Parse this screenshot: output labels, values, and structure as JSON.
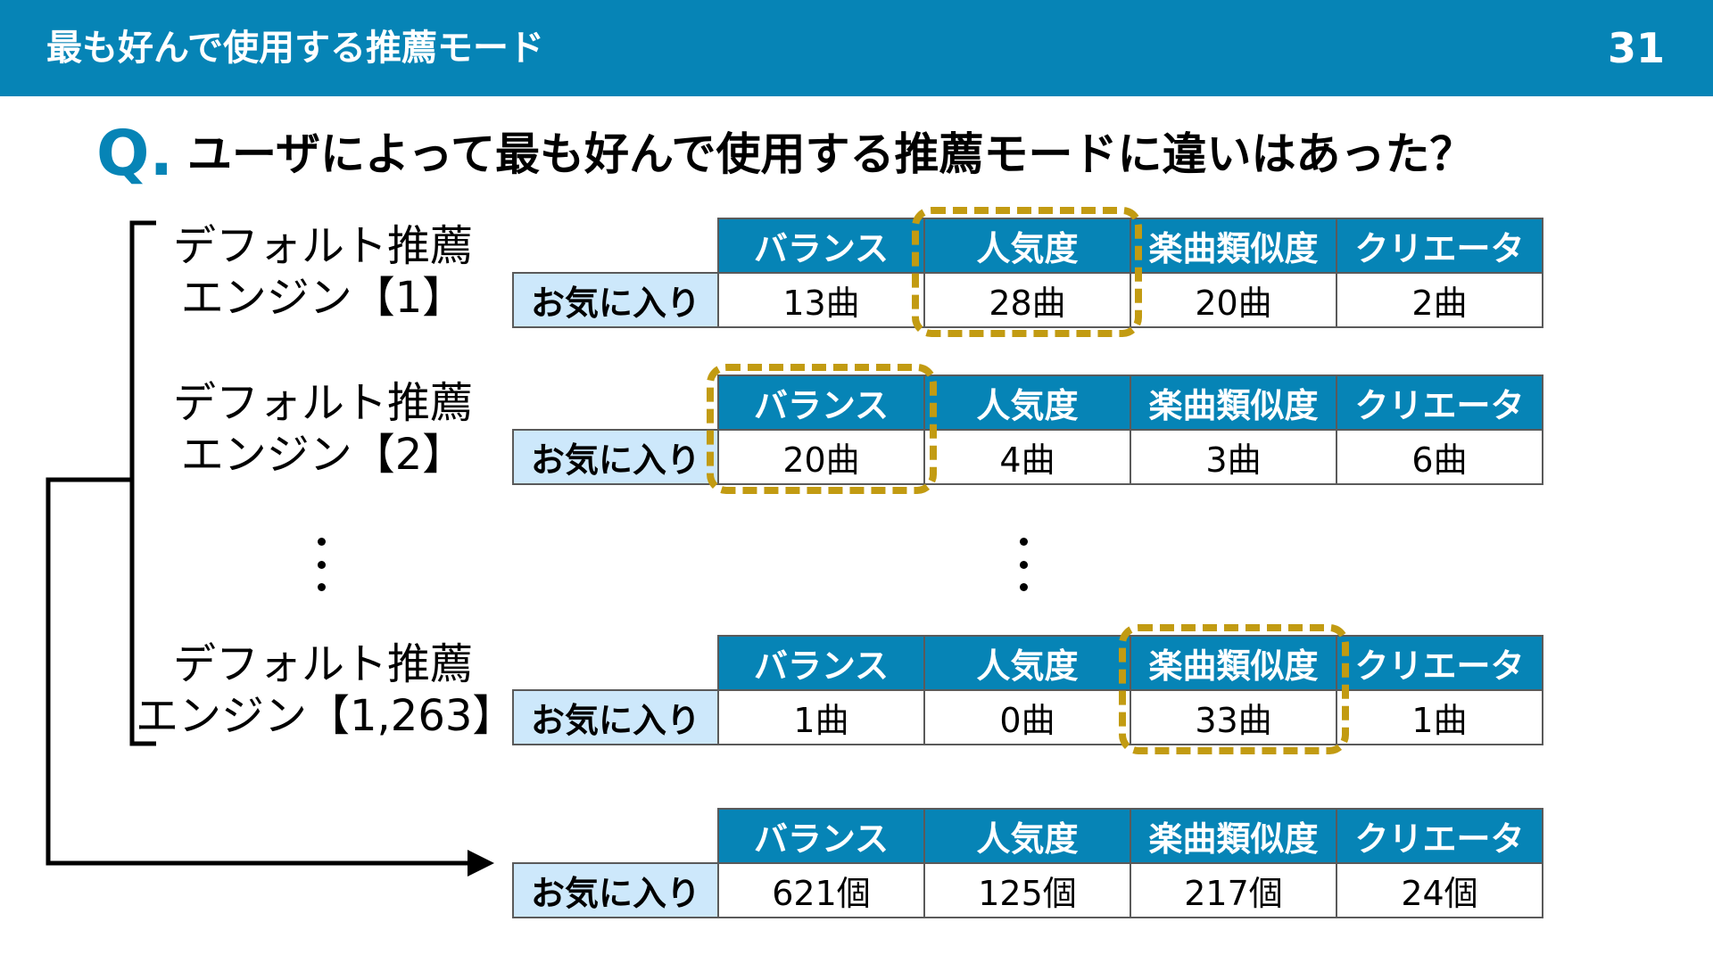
{
  "header": {
    "title": "最も好んで使用する推薦モード",
    "page_number": "31"
  },
  "question": {
    "mark": "Q.",
    "text": "ユーザによって最も好んで使用する推薦モードに違いはあった？"
  },
  "columns": [
    "バランス",
    "人気度",
    "楽曲類似度",
    "クリエータ"
  ],
  "row_label": "お気に入り",
  "engines": [
    {
      "line1": "デフォルト推薦",
      "line2": "エンジン【1】",
      "values": [
        "13曲",
        "28曲",
        "20曲",
        "2曲"
      ],
      "highlight": 1
    },
    {
      "line1": "デフォルト推薦",
      "line2": "エンジン【2】",
      "values": [
        "20曲",
        "4曲",
        "3曲",
        "6曲"
      ],
      "highlight": 0
    },
    {
      "line1": "デフォルト推薦",
      "line2": "エンジン【1,263】",
      "values": [
        "1曲",
        "0曲",
        "33曲",
        "1曲"
      ],
      "highlight": 2
    }
  ],
  "summary": {
    "values": [
      "621個",
      "125個",
      "217個",
      "24個"
    ]
  },
  "colors": {
    "accent": "#0684b6",
    "label_bg": "#cde8fb",
    "highlight": "#c29b12"
  }
}
